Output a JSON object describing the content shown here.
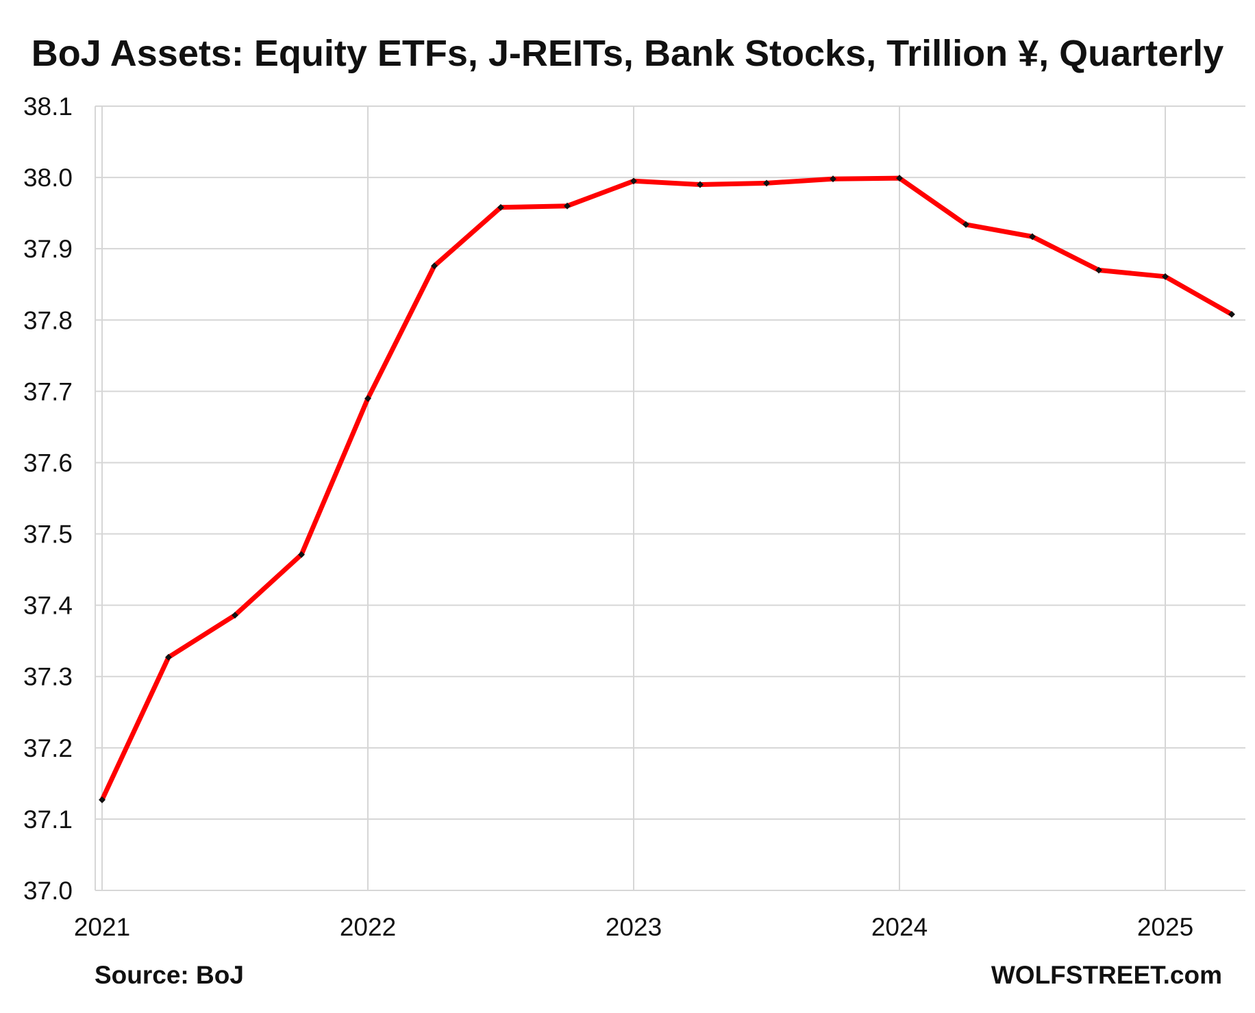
{
  "chart_data": {
    "type": "line",
    "title": "BoJ Assets: Equity ETFs, J-REITs, Bank Stocks, Trillion ¥, Quarterly",
    "xlabel": "",
    "ylabel": "",
    "x": [
      "2021-01",
      "2021-04",
      "2021-07",
      "2021-10",
      "2022-01",
      "2022-04",
      "2022-07",
      "2022-10",
      "2023-01",
      "2023-04",
      "2023-07",
      "2023-10",
      "2024-01",
      "2024-04",
      "2024-07",
      "2024-10",
      "2025-01",
      "2025-04"
    ],
    "series": [
      {
        "values": [
          37.127,
          37.327,
          37.386,
          37.471,
          37.69,
          37.876,
          37.958,
          37.96,
          37.995,
          37.99,
          37.992,
          37.998,
          37.999,
          37.934,
          37.917,
          37.87,
          37.861,
          37.808
        ]
      }
    ],
    "xticks": [
      "2021",
      "2022",
      "2023",
      "2024",
      "2025"
    ],
    "yticks": [
      "37.0",
      "37.1",
      "37.2",
      "37.3",
      "37.4",
      "37.5",
      "37.6",
      "37.7",
      "37.8",
      "37.9",
      "38.0",
      "38.1"
    ],
    "ylim": [
      37.0,
      38.1
    ],
    "grid": true,
    "legend": "none",
    "line_color": "#ff0000",
    "marker_color": "#111111"
  },
  "footer": {
    "source": "Source: BoJ",
    "brand": "WOLFSTREET.com"
  }
}
